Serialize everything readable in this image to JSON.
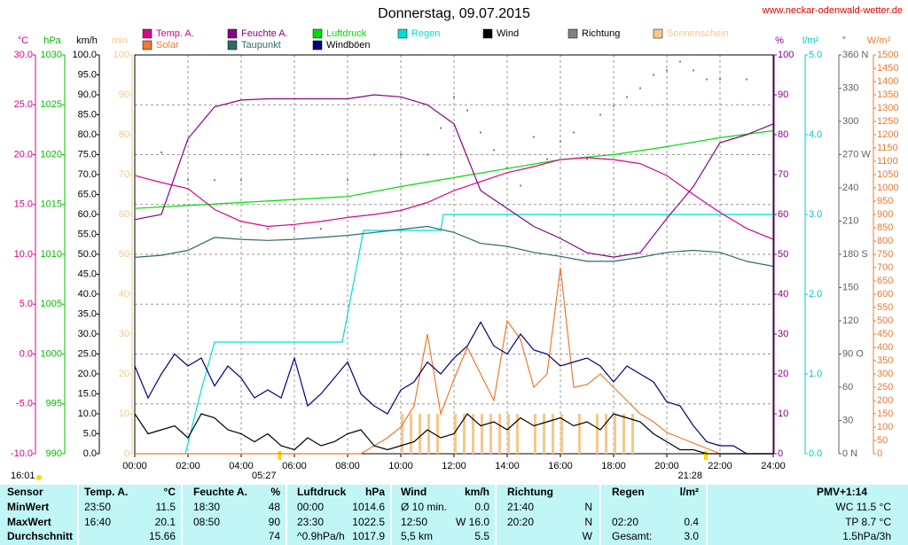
{
  "chart_data": {
    "type": "line",
    "title": "Donnerstag, 09.07.2015",
    "source": "www.neckar-odenwald-wetter.de",
    "time": "16:01",
    "grid": true,
    "xlim": [
      0,
      24
    ],
    "xticks": [
      {
        "value": 0,
        "label": "00:00"
      },
      {
        "value": 2,
        "label": "02:00"
      },
      {
        "value": 4,
        "label": "04:00"
      },
      {
        "value": 6,
        "label": "06:00"
      },
      {
        "value": 8,
        "label": "08:00"
      },
      {
        "value": 10,
        "label": "10:00"
      },
      {
        "value": 12,
        "label": "12:00"
      },
      {
        "value": 14,
        "label": "14:00"
      },
      {
        "value": 16,
        "label": "16:00"
      },
      {
        "value": 18,
        "label": "18:00"
      },
      {
        "value": 20,
        "label": "20:00"
      },
      {
        "value": 22,
        "label": "22:00"
      },
      {
        "value": 24,
        "label": "24:00"
      }
    ],
    "annotations": [
      {
        "value": 5.45,
        "label": "05:27"
      },
      {
        "value": 21.4667,
        "label": "21:28"
      }
    ],
    "axes": [
      {
        "unit": "°C",
        "color": "#e0008c",
        "lim": [
          -10,
          30
        ],
        "ticks": [
          {
            "value": 30,
            "label": "30.0"
          },
          {
            "value": 25,
            "label": "25.0"
          },
          {
            "value": 20,
            "label": "20.0"
          },
          {
            "value": 15,
            "label": "15.0"
          },
          {
            "value": 10,
            "label": "10.0"
          },
          {
            "value": 5,
            "label": "5.0"
          },
          {
            "value": 0,
            "label": "0.0"
          },
          {
            "value": -5,
            "label": "-5.0"
          },
          {
            "value": -10,
            "label": "-10.0"
          }
        ]
      },
      {
        "unit": "hPa",
        "color": "#00c000",
        "lim": [
          990,
          1030
        ],
        "ticks": [
          1030,
          1025,
          1020,
          1015,
          1010,
          1005,
          1000,
          995,
          990
        ]
      },
      {
        "unit": "km/h",
        "color": "#000000",
        "lim": [
          0,
          100
        ],
        "ticks": [
          {
            "value": 100,
            "label": "100.0"
          },
          {
            "value": 95,
            "label": "95.0"
          },
          {
            "value": 90,
            "label": "90.0"
          },
          {
            "value": 85,
            "label": "85.0"
          },
          {
            "value": 80,
            "label": "80.0"
          },
          {
            "value": 75,
            "label": "75.0"
          },
          {
            "value": 70,
            "label": "70.0"
          },
          {
            "value": 65,
            "label": "65.0"
          },
          {
            "value": 60,
            "label": "60.0"
          },
          {
            "value": 55,
            "label": "55.0"
          },
          {
            "value": 50,
            "label": "50.0"
          },
          {
            "value": 45,
            "label": "45.0"
          },
          {
            "value": 40,
            "label": "40.0"
          },
          {
            "value": 35,
            "label": "35.0"
          },
          {
            "value": 30,
            "label": "30.0"
          },
          {
            "value": 25,
            "label": "25.0"
          },
          {
            "value": 20,
            "label": "20.0"
          },
          {
            "value": 15,
            "label": "15.0"
          },
          {
            "value": 10,
            "label": "10.0"
          },
          {
            "value": 5,
            "label": "5.0"
          },
          {
            "value": 0,
            "label": "0.0"
          }
        ]
      },
      {
        "unit": "min",
        "color": "#f5c88c",
        "lim": [
          0,
          100
        ],
        "ticks": [
          100,
          90,
          80,
          70,
          60,
          50,
          40,
          30,
          20,
          10,
          0
        ]
      },
      {
        "unit": "%",
        "color": "#8b008b",
        "lim": [
          0,
          100
        ],
        "ticks": [
          100,
          90,
          80,
          70,
          60,
          50,
          40,
          30,
          20,
          10,
          0
        ]
      },
      {
        "unit": "l/m²",
        "color": "#00cccc",
        "lim": [
          0,
          5
        ],
        "ticks": [
          {
            "value": 5,
            "label": "5.0"
          },
          {
            "value": 4,
            "label": "4.0"
          },
          {
            "value": 3,
            "label": "3.0"
          },
          {
            "value": 2,
            "label": "2.0"
          },
          {
            "value": 1,
            "label": "1.0"
          },
          {
            "value": 0,
            "label": "0.0"
          }
        ]
      },
      {
        "unit": "°",
        "color": "#606060",
        "lim": [
          0,
          360
        ],
        "ticks": [
          {
            "value": 360,
            "label": "360 N"
          },
          330,
          300,
          {
            "value": 270,
            "label": "270 W"
          },
          240,
          210,
          {
            "value": 180,
            "label": "180 S"
          },
          150,
          120,
          {
            "value": 90,
            "label": "90 O"
          },
          60,
          30,
          {
            "value": 0,
            "label": "0 N"
          }
        ]
      },
      {
        "unit": "W/m²",
        "color": "#f07830",
        "lim": [
          0,
          1500
        ],
        "ticks": [
          1500,
          1450,
          1400,
          1350,
          1300,
          1250,
          1200,
          1150,
          1100,
          1050,
          1000,
          950,
          900,
          850,
          800,
          750,
          700,
          650,
          600,
          550,
          500,
          450,
          400,
          350,
          300,
          250,
          200,
          150,
          100,
          50,
          0
        ]
      }
    ],
    "series": [
      {
        "name": "Temp. A.",
        "color": "#e0008c",
        "axis": 0,
        "x": [
          0,
          1,
          2,
          3,
          4,
          5,
          6,
          7,
          8,
          9,
          10,
          11,
          12,
          13,
          14,
          15,
          16,
          17,
          18,
          19,
          20,
          21,
          22,
          23,
          24
        ],
        "values": [
          17.9,
          17.2,
          16.6,
          14.5,
          13.3,
          12.8,
          13.0,
          13.3,
          13.7,
          14.0,
          14.4,
          15.2,
          16.4,
          17.3,
          18.2,
          18.8,
          19.5,
          19.7,
          19.5,
          19.1,
          17.9,
          16.0,
          14.2,
          12.6,
          11.5
        ]
      },
      {
        "name": "Feuchte A.",
        "color": "#8b008b",
        "axis": 4,
        "x": [
          0,
          1,
          2,
          3,
          4,
          5,
          6,
          7,
          8,
          9,
          10,
          11,
          12,
          13,
          14,
          15,
          16,
          17,
          18,
          19,
          20,
          21,
          22,
          23,
          24
        ],
        "values": [
          58.7,
          60,
          79,
          87,
          88.7,
          89,
          89,
          89,
          89,
          90,
          89.5,
          87.5,
          82.7,
          66,
          61.5,
          57,
          54,
          50.4,
          49.3,
          50.4,
          59,
          67,
          78,
          80,
          82.7
        ]
      },
      {
        "name": "Luftdruck",
        "color": "#00dd00",
        "axis": 1,
        "x": [
          0,
          2,
          4,
          6,
          8,
          10,
          12,
          14,
          16,
          18,
          20,
          22,
          24
        ],
        "values": [
          1014.6,
          1014.9,
          1015.2,
          1015.5,
          1015.8,
          1016.8,
          1017.7,
          1018.6,
          1019.5,
          1020.0,
          1020.8,
          1021.7,
          1022.4
        ]
      },
      {
        "name": "Regen",
        "color": "#00dddd",
        "axis": 5,
        "x": [
          1.9,
          2.5,
          3.0,
          7.8,
          8.6,
          11.5,
          11.6,
          24
        ],
        "values": [
          0,
          0.8,
          1.4,
          1.4,
          2.8,
          2.8,
          3.0,
          3.0
        ]
      },
      {
        "name": "Wind",
        "color": "#000000",
        "axis": 2,
        "x": [
          0,
          0.5,
          1,
          1.5,
          2,
          2.5,
          3,
          3.5,
          4,
          4.5,
          5,
          5.5,
          6,
          6.5,
          7,
          7.5,
          8,
          8.5,
          9,
          9.5,
          10,
          10.5,
          11,
          11.5,
          12,
          12.5,
          13,
          13.5,
          14,
          14.5,
          15,
          15.5,
          16,
          16.5,
          17,
          17.5,
          18,
          18.5,
          19,
          19.5,
          20,
          20.5,
          21,
          21.5,
          22,
          22.5,
          23,
          23.5,
          24
        ],
        "values": [
          10,
          5,
          6,
          7,
          4,
          10,
          9,
          6,
          5,
          3,
          5,
          2,
          1,
          4,
          2,
          3,
          5,
          6,
          2,
          1,
          2,
          3,
          6,
          4,
          5,
          10,
          7,
          8,
          6,
          9,
          7,
          8,
          9,
          7,
          8,
          6,
          10,
          9,
          8,
          5,
          3,
          1,
          1,
          0,
          0,
          0,
          0,
          0,
          0
        ]
      },
      {
        "name": "Richtung",
        "color": "#808080",
        "axis": 6,
        "type": "scatter",
        "x": [
          0,
          1,
          2,
          3,
          4,
          5,
          6,
          7,
          8,
          9,
          10,
          11,
          11.5,
          12,
          12.5,
          13,
          13.5,
          14,
          14.5,
          15,
          15.5,
          16,
          16.5,
          17,
          17.5,
          18,
          18.5,
          19,
          19.5,
          20,
          20.5,
          21,
          21.5,
          22,
          23
        ],
        "values": [
          250,
          272,
          247,
          247,
          247,
          203,
          203,
          203,
          247,
          270,
          270,
          270,
          294,
          322,
          310,
          290,
          274,
          258,
          242,
          286,
          266,
          282,
          290,
          266,
          306,
          314,
          322,
          330,
          342,
          346,
          354,
          346,
          338,
          338,
          338
        ]
      },
      {
        "name": "Sonnenschein",
        "color": "#f5c88c",
        "axis": 3,
        "type": "bar",
        "x": [
          10,
          10.333,
          10.667,
          11,
          11.333,
          12,
          12.333,
          12.667,
          13,
          13.333,
          13.667,
          14,
          14.333,
          15,
          15.333,
          15.667,
          16,
          16.667,
          17.333,
          17.667,
          18,
          18.333,
          18.667
        ],
        "values": [
          10,
          10,
          10,
          10,
          10,
          10,
          10,
          10,
          10,
          10,
          10,
          10,
          10,
          10,
          10,
          10,
          10,
          10,
          10,
          10,
          10,
          10,
          10
        ]
      },
      {
        "name": "Solar",
        "color": "#f07830",
        "axis": 7,
        "x": [
          0,
          0.5,
          1,
          1.5,
          2,
          2.5,
          3,
          3.5,
          4,
          4.5,
          5,
          5.5,
          6,
          6.5,
          7,
          7.5,
          8,
          8.5,
          9,
          9.5,
          10,
          10.5,
          11,
          11.5,
          12,
          12.5,
          13,
          13.5,
          14,
          14.5,
          15,
          15.5,
          16,
          16.5,
          17,
          17.5,
          18,
          18.5,
          19,
          19.5,
          20,
          20.5,
          21,
          21.5,
          22,
          22.5,
          23,
          23.5,
          24
        ],
        "values": [
          0,
          0,
          0,
          0,
          0,
          0,
          0,
          0,
          0,
          0,
          0,
          0,
          0,
          0,
          0,
          0,
          0,
          0,
          30,
          60,
          100,
          180,
          450,
          150,
          280,
          400,
          300,
          200,
          500,
          430,
          250,
          300,
          700,
          250,
          260,
          300,
          250,
          200,
          150,
          120,
          80,
          60,
          40,
          20,
          0,
          0,
          0,
          0,
          0
        ]
      },
      {
        "name": "Taupunkt",
        "color": "#2e6b6b",
        "axis": 0,
        "x": [
          0,
          1,
          2,
          3,
          4,
          5,
          6,
          7,
          8,
          9,
          10,
          11,
          12,
          13,
          14,
          15,
          16,
          17,
          18,
          19,
          20,
          21,
          22,
          23,
          24
        ],
        "values": [
          9.7,
          9.9,
          10.4,
          11.7,
          11.5,
          11.4,
          11.5,
          11.7,
          11.9,
          12.2,
          12.5,
          12.8,
          12.2,
          11.1,
          10.8,
          10.2,
          9.8,
          9.3,
          9.3,
          9.7,
          10.2,
          10.4,
          10.2,
          9.3,
          8.8
        ]
      },
      {
        "name": "Windböen",
        "color": "#000080",
        "axis": 2,
        "x": [
          0,
          0.5,
          1,
          1.5,
          2,
          2.5,
          3,
          3.5,
          4,
          4.5,
          5,
          5.5,
          6,
          6.5,
          7,
          7.5,
          8,
          8.5,
          9,
          9.5,
          10,
          10.5,
          11,
          11.5,
          12,
          12.5,
          13,
          13.5,
          14,
          14.5,
          15,
          15.5,
          16,
          16.5,
          17,
          17.5,
          18,
          18.5,
          19,
          19.5,
          20,
          20.5,
          21,
          21.5,
          22,
          22.5,
          23,
          23.5,
          24
        ],
        "values": [
          22,
          14,
          20,
          25,
          22,
          24,
          17,
          22,
          19,
          14,
          16,
          14,
          24,
          12,
          15,
          19,
          23,
          15,
          12,
          10,
          16,
          18,
          23,
          20,
          24,
          27,
          33,
          27,
          25,
          30,
          26,
          25,
          22,
          23,
          24,
          22,
          18,
          22,
          20,
          18,
          13,
          12,
          7,
          3,
          2,
          2,
          0,
          0,
          0
        ]
      }
    ]
  },
  "table": {
    "header": [
      "Sensor",
      "Temp. A.",
      "°C",
      "Feuchte A.",
      "%",
      "Luftdruck",
      "hPa",
      "Wind",
      "km/h",
      "Richtung",
      null,
      "Regen",
      "l/m²",
      "PMV+1:14"
    ],
    "rows": [
      [
        "MinWert",
        "23:50",
        "11.5",
        "18:30",
        "48",
        "00:00",
        "1014.6",
        "Ø 10 min.",
        "0.0",
        "21:40",
        "N",
        null,
        null,
        "WC 11.5 °C"
      ],
      [
        "MaxWert",
        "16:40",
        "20.1",
        "08:50",
        "90",
        "23:30",
        "1022.5",
        "12:50",
        "W 16.0",
        "20:20",
        "N",
        "02:20",
        "0.4",
        "TP 8.7 °C"
      ],
      [
        "Durchschnitt",
        null,
        "15.66",
        null,
        "74",
        "^0.9hPa/h",
        "1017.9",
        "5,5 km",
        "5.5",
        null,
        "W",
        "Gesamt:",
        "3.0",
        "1.5hPa/3h"
      ]
    ]
  }
}
